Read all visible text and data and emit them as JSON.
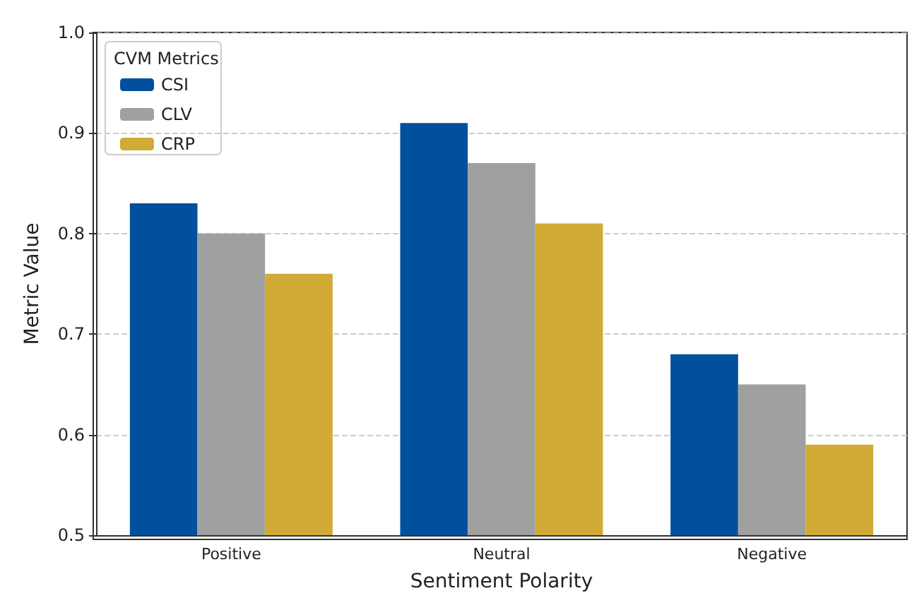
{
  "chart_data": {
    "type": "bar",
    "xlabel": "Sentiment Polarity",
    "ylabel": "Metric Value",
    "legend_title": "CVM Metrics",
    "categories": [
      "Positive",
      "Neutral",
      "Negative"
    ],
    "series": [
      {
        "name": "CSI",
        "color": "#00509e",
        "values": [
          0.83,
          0.91,
          0.68
        ]
      },
      {
        "name": "CLV",
        "color": "#a0a0a0",
        "values": [
          0.8,
          0.87,
          0.65
        ]
      },
      {
        "name": "CRP",
        "color": "#d1ab35",
        "values": [
          0.76,
          0.81,
          0.59
        ]
      }
    ],
    "ylim": [
      0.5,
      1.0
    ],
    "yticks": [
      0.5,
      0.6,
      0.7,
      0.8,
      0.9,
      {
        "value": 1.0,
        "label": "1.0"
      }
    ],
    "grid": "y",
    "legend": "top left"
  }
}
